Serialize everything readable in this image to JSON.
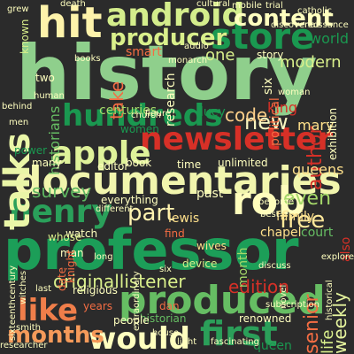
{
  "background": "#2b2b2b",
  "words": [
    {
      "text": "history",
      "color": "#8fcf8c",
      "weight": "bold"
    },
    {
      "text": "professor",
      "color": "#1c9e58",
      "weight": "bold"
    },
    {
      "text": "documentaries",
      "color": "#f1f5ad",
      "weight": "bold"
    },
    {
      "text": "newsletter",
      "color": "#d73027",
      "weight": "bold"
    },
    {
      "text": "hit",
      "color": "#fef3ab",
      "weight": "bold"
    },
    {
      "text": "android",
      "color": "#d4ed8c",
      "weight": "bold"
    },
    {
      "text": "store",
      "color": "#1a9850",
      "weight": "bold"
    },
    {
      "text": "rob",
      "color": "#fffdbc",
      "weight": "bold"
    },
    {
      "text": "henry",
      "color": "#2aa05a",
      "weight": "bold"
    },
    {
      "text": "produced",
      "color": "#66bd63",
      "weight": "bold"
    },
    {
      "text": "talks",
      "color": "#eaf6a8",
      "weight": "bold"
    },
    {
      "text": "hundreds",
      "color": "#1a9850",
      "weight": "bold"
    },
    {
      "text": "apple",
      "color": "#dff29a",
      "weight": "bold"
    },
    {
      "text": "first",
      "color": "#2b9f59",
      "weight": "bold"
    },
    {
      "text": "would",
      "color": "#ffffbf",
      "weight": "bold"
    },
    {
      "text": "like",
      "color": "#f07e4a",
      "weight": "bold"
    },
    {
      "text": "months",
      "color": "#f59a5a",
      "weight": "bold"
    },
    {
      "text": "content",
      "color": "#ffffbf",
      "weight": "bold"
    },
    {
      "text": "producer",
      "color": "#d9ef8b",
      "weight": "bold"
    },
    {
      "text": "free",
      "color": "#fee89a",
      "weight": "normal"
    },
    {
      "text": "even",
      "color": "#a6d96a",
      "weight": "normal"
    },
    {
      "text": "part",
      "color": "#fff3b0",
      "weight": "normal"
    },
    {
      "text": "survey",
      "color": "#5fb761",
      "weight": "normal"
    },
    {
      "text": "new",
      "color": "#f8f5c0",
      "weight": "normal"
    },
    {
      "text": "code",
      "color": "#fdd08a",
      "weight": "normal"
    },
    {
      "text": "author",
      "color": "#d73027",
      "weight": "normal"
    },
    {
      "text": "originallistener",
      "color": "#d9ef8b",
      "weight": "normal"
    },
    {
      "text": "edition",
      "color": "#d73027",
      "weight": "normal"
    },
    {
      "text": "weekly",
      "color": "#e6f59d",
      "weight": "normal"
    },
    {
      "text": "senior",
      "color": "#f46d43",
      "weight": "normal"
    },
    {
      "text": "life",
      "color": "#d9ef8b",
      "weight": "normal"
    },
    {
      "text": "historians",
      "color": "#66bd63",
      "weight": "normal"
    },
    {
      "text": "take",
      "color": "#f46d43",
      "weight": "normal"
    },
    {
      "text": "smart",
      "color": "#f46d43",
      "weight": "normal"
    },
    {
      "text": "one",
      "color": "#d9ef8b",
      "weight": "normal"
    },
    {
      "text": "modern",
      "color": "#d9ef8b",
      "weight": "normal"
    },
    {
      "text": "mary",
      "color": "#fee08b",
      "weight": "normal"
    },
    {
      "text": "world",
      "color": "#1a9850",
      "weight": "normal"
    },
    {
      "text": "king",
      "color": "#d73027",
      "weight": "normal"
    },
    {
      "text": "centuries",
      "color": "#a6d96a",
      "weight": "normal"
    },
    {
      "text": "lucy",
      "color": "#1a9850",
      "weight": "normal"
    },
    {
      "text": "story",
      "color": "#ffffbf",
      "weight": "normal"
    },
    {
      "text": "mobile",
      "color": "#ffffbf",
      "weight": "normal"
    },
    {
      "text": "trial",
      "color": "#ffffbf",
      "weight": "normal"
    },
    {
      "text": "catholic",
      "color": "#ffffbf",
      "weight": "normal"
    },
    {
      "text": "queens",
      "color": "#fee08b",
      "weight": "normal"
    },
    {
      "text": "queen",
      "color": "#1a9850",
      "weight": "normal"
    },
    {
      "text": "court",
      "color": "#66bd63",
      "weight": "normal"
    },
    {
      "text": "also",
      "color": "#d73027",
      "weight": "normal"
    },
    {
      "text": "month",
      "color": "#a6d96a",
      "weight": "normal"
    },
    {
      "text": "family",
      "color": "#fee08b",
      "weight": "normal"
    },
    {
      "text": "lewis",
      "color": "#fee08b",
      "weight": "normal"
    },
    {
      "text": "chapel",
      "color": "#fee08b",
      "weight": "normal"
    },
    {
      "text": "past",
      "color": "#ffffbf",
      "weight": "normal"
    },
    {
      "text": "book",
      "color": "#ffffbf",
      "weight": "normal"
    },
    {
      "text": "unlimited",
      "color": "#ffffbf",
      "weight": "normal"
    },
    {
      "text": "everything",
      "color": "#ffffbf",
      "weight": "normal"
    },
    {
      "text": "watch",
      "color": "#ffffbf",
      "weight": "normal"
    },
    {
      "text": "whose",
      "color": "#d9ef8b",
      "weight": "normal"
    },
    {
      "text": "man",
      "color": "#ffffbf",
      "weight": "normal"
    },
    {
      "text": "date",
      "color": "#f46d43",
      "weight": "normal"
    },
    {
      "text": "find",
      "color": "#f46d43",
      "weight": "normal"
    },
    {
      "text": "device",
      "color": "#d9ef8b",
      "weight": "normal"
    },
    {
      "text": "religious",
      "color": "#ffffbf",
      "weight": "normal"
    },
    {
      "text": "years",
      "color": "#f46d43",
      "weight": "normal"
    },
    {
      "text": "historian",
      "color": "#66bd63",
      "weight": "normal"
    },
    {
      "text": "renowned",
      "color": "#ffffbf",
      "weight": "normal"
    },
    {
      "text": "people",
      "color": "#ffffbf",
      "weight": "normal"
    },
    {
      "text": "smith",
      "color": "#ffffbf",
      "weight": "normal"
    },
    {
      "text": "researcher",
      "color": "#ffffbf",
      "weight": "normal"
    },
    {
      "text": "fascinating",
      "color": "#ffffbf",
      "weight": "normal"
    },
    {
      "text": "wives",
      "color": "#fee08b",
      "weight": "normal"
    },
    {
      "text": "many",
      "color": "#ffffbf",
      "weight": "normal"
    },
    {
      "text": "power",
      "color": "#1a9850",
      "weight": "normal"
    },
    {
      "text": "women",
      "color": "#1a9850",
      "weight": "normal"
    },
    {
      "text": "time",
      "color": "#ffffbf",
      "weight": "normal"
    },
    {
      "text": "editor",
      "color": "#ffffbf",
      "weight": "normal"
    },
    {
      "text": "different",
      "color": "#ffffbf",
      "weight": "normal"
    },
    {
      "text": "knight",
      "color": "#f46d43",
      "weight": "normal"
    },
    {
      "text": "two",
      "color": "#ffffbf",
      "weight": "normal"
    },
    {
      "text": "books",
      "color": "#ffffbf",
      "weight": "normal"
    },
    {
      "text": "audio",
      "color": "#ffffbf",
      "weight": "normal"
    },
    {
      "text": "research",
      "color": "#ffffbf",
      "weight": "normal"
    },
    {
      "text": "church",
      "color": "#ffffbf",
      "weight": "normal"
    },
    {
      "text": "figure",
      "color": "#ffffbf",
      "weight": "normal"
    },
    {
      "text": "death",
      "color": "#ffffbf",
      "weight": "normal"
    },
    {
      "text": "known",
      "color": "#d9ef8b",
      "weight": "normal"
    },
    {
      "text": "six",
      "color": "#ffffbf",
      "weight": "normal"
    },
    {
      "text": "political",
      "color": "#f46d43",
      "weight": "normal"
    },
    {
      "text": "exhibition",
      "color": "#ffffbf",
      "weight": "normal"
    },
    {
      "text": "behind",
      "color": "#ffffbf",
      "weight": "normal"
    },
    {
      "text": "men",
      "color": "#ffffbf",
      "weight": "normal"
    },
    {
      "text": "best",
      "color": "#ffffbf",
      "weight": "normal"
    },
    {
      "text": "explore",
      "color": "#ffffbf",
      "weight": "normal"
    },
    {
      "text": "house",
      "color": "#ffffbf",
      "weight": "normal"
    },
    {
      "text": "light",
      "color": "#ffffbf",
      "weight": "normal"
    },
    {
      "text": "dan",
      "color": "#f46d43",
      "weight": "normal"
    },
    {
      "text": "sixteenthcentury",
      "color": "#ffffbf",
      "weight": "normal"
    },
    {
      "text": "witches",
      "color": "#ffffbf",
      "weight": "normal"
    },
    {
      "text": "last",
      "color": "#ffffbf",
      "weight": "normal"
    },
    {
      "text": "novel",
      "color": "#ffffbf",
      "weight": "normal"
    },
    {
      "text": "discuss",
      "color": "#ffffbf",
      "weight": "normal"
    },
    {
      "text": "historical",
      "color": "#ffffbf",
      "weight": "normal"
    },
    {
      "text": "subscription",
      "color": "#ffffbf",
      "weight": "normal"
    },
    {
      "text": "cultural",
      "color": "#ffffbf",
      "weight": "normal"
    },
    {
      "text": "monarch",
      "color": "#ffffbf",
      "weight": "normal"
    },
    {
      "text": "human",
      "color": "#ffffbf",
      "weight": "normal"
    },
    {
      "text": "become",
      "color": "#ffffbf",
      "weight": "normal"
    },
    {
      "text": "woman",
      "color": "#ffffbf",
      "weight": "normal"
    },
    {
      "text": "discovered",
      "color": "#ffffbf",
      "weight": "normal"
    },
    {
      "text": "renaissance",
      "color": "#ffffbf",
      "weight": "normal"
    },
    {
      "text": "long",
      "color": "#ffffbf",
      "weight": "normal"
    },
    {
      "text": "extraordinary",
      "color": "#ffffbf",
      "weight": "normal"
    },
    {
      "text": "grew",
      "color": "#ffffbf",
      "weight": "normal"
    },
    {
      "text": "six",
      "color": "#ffffbf",
      "weight": "normal"
    }
  ]
}
